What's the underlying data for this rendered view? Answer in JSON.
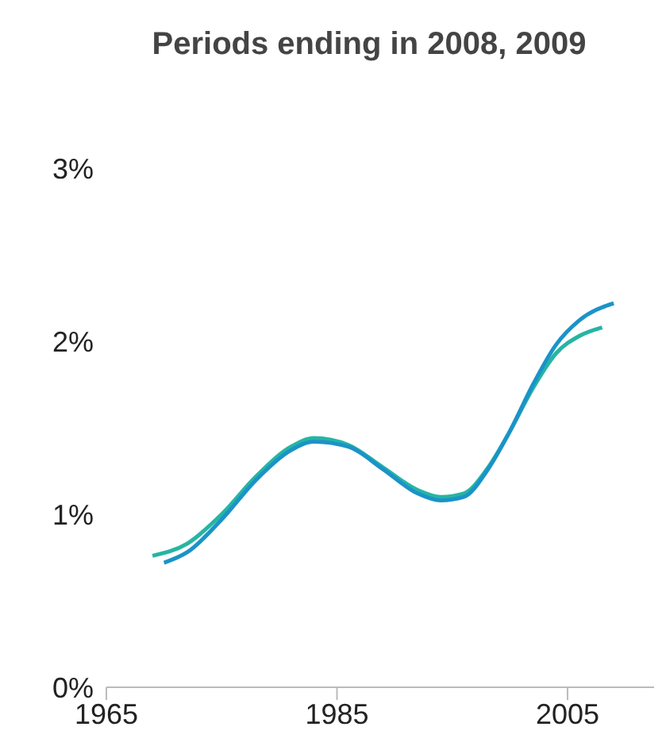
{
  "chart_data": {
    "type": "line",
    "title": "Periods ending in 2008, 2009",
    "xlim": [
      1965,
      2012.5
    ],
    "xticks": [
      1965,
      1985,
      2005
    ],
    "ylim": [
      0,
      3
    ],
    "yticks": [
      {
        "value": 0,
        "label": "0%"
      },
      {
        "value": 1,
        "label": "1%"
      },
      {
        "value": 2,
        "label": "2%"
      },
      {
        "value": 3,
        "label": "3%"
      }
    ],
    "grid": false,
    "legend": false,
    "series": [
      {
        "color": "#26b5a3",
        "x": [
          1969,
          1972,
          1975,
          1978,
          1981,
          1983,
          1986,
          1989,
          1992,
          1994,
          1996,
          1998,
          2000,
          2002,
          2004,
          2006,
          2008
        ],
        "values": [
          0.76,
          0.83,
          1.0,
          1.22,
          1.39,
          1.44,
          1.4,
          1.27,
          1.14,
          1.1,
          1.12,
          1.26,
          1.48,
          1.73,
          1.93,
          2.03,
          2.08
        ]
      },
      {
        "color": "#1b93c8",
        "x": [
          1970,
          1972,
          1975,
          1978,
          1981,
          1983,
          1986,
          1989,
          1992,
          1994,
          1996,
          1998,
          2000,
          2002,
          2004,
          2006,
          2009
        ],
        "values": [
          0.72,
          0.78,
          0.97,
          1.2,
          1.37,
          1.42,
          1.39,
          1.26,
          1.12,
          1.08,
          1.1,
          1.25,
          1.48,
          1.75,
          1.98,
          2.12,
          2.22
        ]
      }
    ]
  }
}
